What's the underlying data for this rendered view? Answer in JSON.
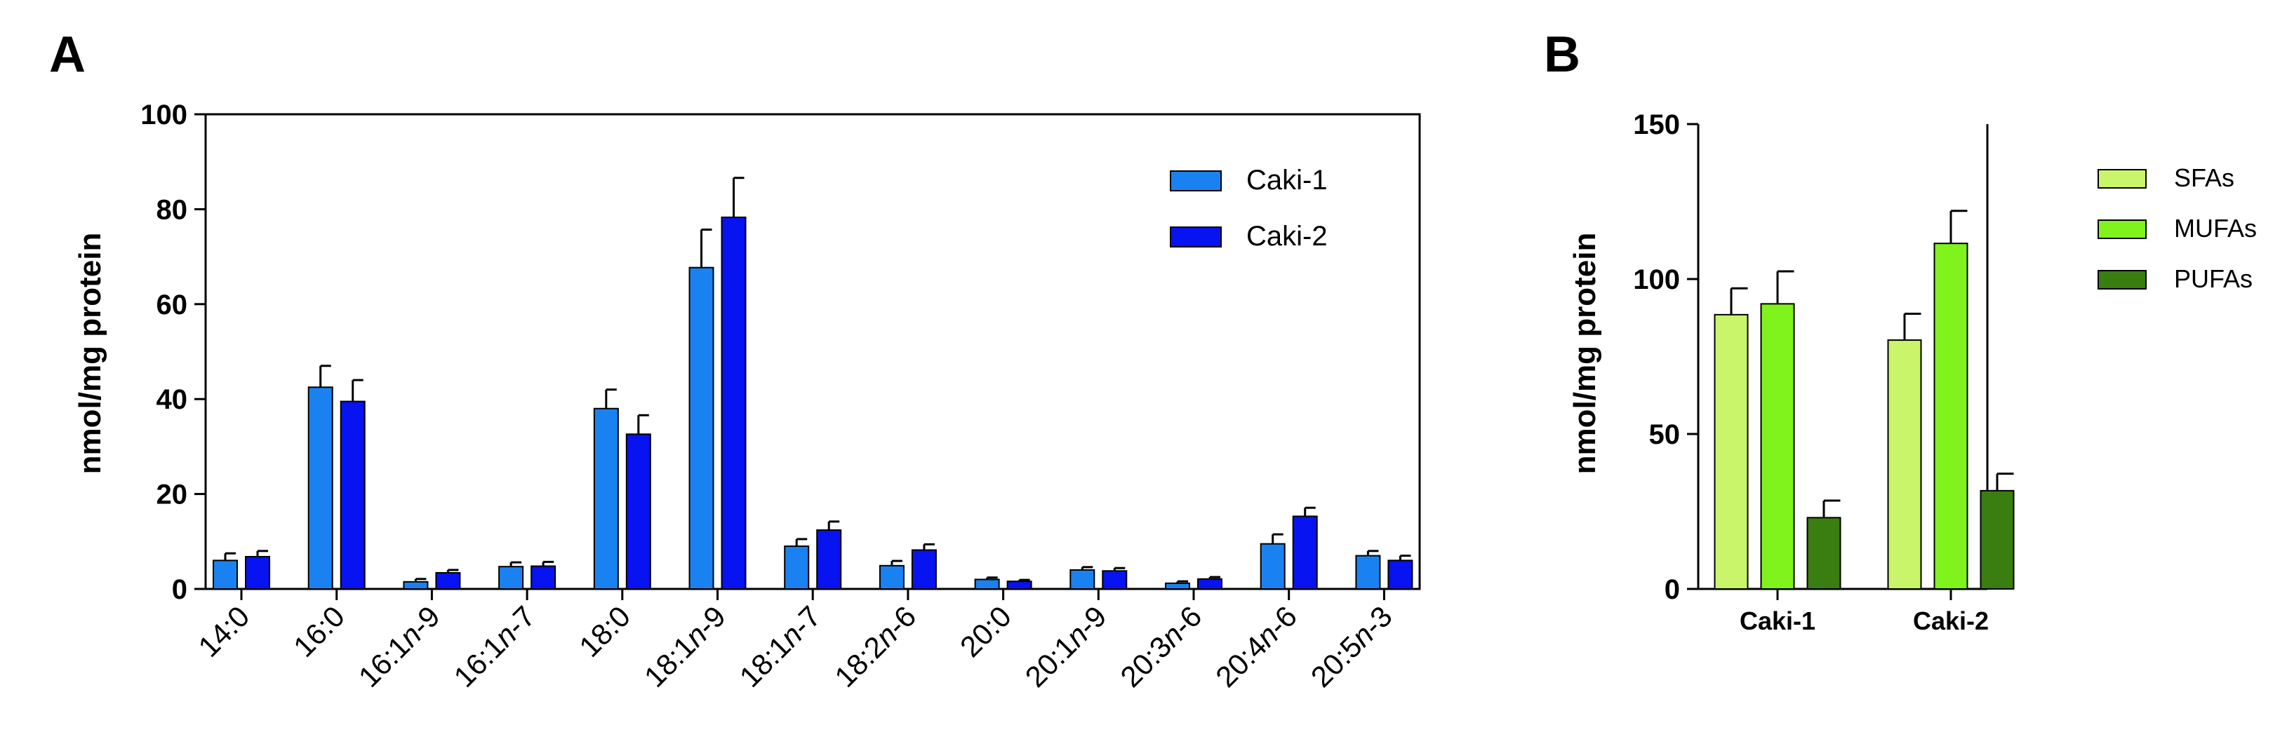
{
  "chart_data": [
    {
      "panel": "A",
      "type": "bar",
      "ylabel": "nmol/mg protein",
      "ylim": [
        0,
        100
      ],
      "yticks": [
        0,
        20,
        40,
        60,
        80,
        100
      ],
      "categories": [
        {
          "pre": "14:0",
          "italic": "",
          "post": ""
        },
        {
          "pre": "16:0",
          "italic": "",
          "post": ""
        },
        {
          "pre": "16:1",
          "italic": "n",
          "post": "-9"
        },
        {
          "pre": "16:1",
          "italic": "n",
          "post": "-7"
        },
        {
          "pre": "18:0",
          "italic": "",
          "post": ""
        },
        {
          "pre": "18:1",
          "italic": "n",
          "post": "-9"
        },
        {
          "pre": "18:1",
          "italic": "n",
          "post": "-7"
        },
        {
          "pre": "18:2",
          "italic": "n",
          "post": "-6"
        },
        {
          "pre": "20:0",
          "italic": "",
          "post": ""
        },
        {
          "pre": "20:1",
          "italic": "n",
          "post": "-9"
        },
        {
          "pre": "20:3",
          "italic": "n",
          "post": "-6"
        },
        {
          "pre": "20:4",
          "italic": "n",
          "post": "-6"
        },
        {
          "pre": "20:5",
          "italic": "n",
          "post": "-3"
        }
      ],
      "series": [
        {
          "name": "Caki-1",
          "color": "#1a82f0",
          "values": [
            6,
            42.5,
            1.5,
            4.7,
            38,
            67.7,
            9,
            4.9,
            2,
            4,
            1.2,
            9.5,
            7
          ],
          "errors": [
            1.5,
            4.5,
            0.6,
            0.9,
            4,
            8,
            1.5,
            1,
            0.4,
            0.6,
            0.4,
            2,
            1
          ]
        },
        {
          "name": "Caki-2",
          "color": "#0713f0",
          "values": [
            6.8,
            39.5,
            3.4,
            4.8,
            32.6,
            78.3,
            12.4,
            8.2,
            1.6,
            3.8,
            2.1,
            15.3,
            6
          ],
          "errors": [
            1.2,
            4.5,
            0.6,
            0.9,
            4,
            8.3,
            1.8,
            1.2,
            0.3,
            0.6,
            0.4,
            1.8,
            1
          ]
        }
      ],
      "legend_position": "top-right"
    },
    {
      "panel": "B",
      "type": "bar",
      "ylabel": "nmol/mg protein",
      "ylim": [
        0,
        150
      ],
      "yticks": [
        0,
        50,
        100,
        150
      ],
      "categories": [
        "Caki-1",
        "Caki-2"
      ],
      "series": [
        {
          "name": "SFAs",
          "color": "#c9f56a",
          "values": [
            88.5,
            80.3
          ],
          "errors": [
            8.5,
            8.5
          ]
        },
        {
          "name": "MUFAs",
          "color": "#80f21c",
          "values": [
            92,
            111.5
          ],
          "errors": [
            10.5,
            10.5
          ]
        },
        {
          "name": "PUFAs",
          "color": "#3a7d10",
          "values": [
            23,
            31.7
          ],
          "errors": [
            5.5,
            5.5
          ]
        }
      ],
      "legend_position": "right"
    }
  ]
}
